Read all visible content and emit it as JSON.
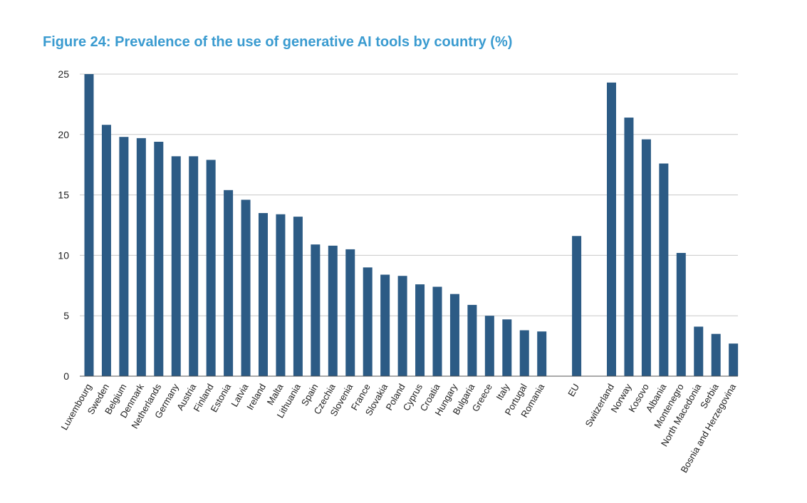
{
  "chart_data": {
    "type": "bar",
    "title": "Figure 24: Prevalence of the use of generative AI tools by country (%)",
    "xlabel": "",
    "ylabel": "",
    "ylim": [
      0,
      25
    ],
    "yticks": [
      0,
      5,
      10,
      15,
      20,
      25
    ],
    "grid": true,
    "legend": "none",
    "bar_color": "#2c5b85",
    "gridline_color": "#c8c8c8",
    "title_color": "#3a9bd0",
    "categories": [
      "Luxembourg",
      "Sweden",
      "Belgium",
      "Denmark",
      "Netherlands",
      "Germany",
      "Austria",
      "Finland",
      "Estonia",
      "Latvia",
      "Ireland",
      "Malta",
      "Lithuania",
      "Spain",
      "Czechia",
      "Slovenia",
      "France",
      "Slovakia",
      "Poland",
      "Cyprus",
      "Croatia",
      "Hungary",
      "Bulgaria",
      "Greece",
      "Italy",
      "Portugal",
      "Romania",
      "EU",
      "Switzerland",
      "Norway",
      "Kosovo",
      "Albania",
      "Montenegro",
      "North Macedonia",
      "Serbia",
      "Bosnia and Herzegovina"
    ],
    "values": [
      25.0,
      20.8,
      19.8,
      19.7,
      19.4,
      18.2,
      18.2,
      17.9,
      15.4,
      14.6,
      13.5,
      13.4,
      13.2,
      10.9,
      10.8,
      10.5,
      9.0,
      8.4,
      8.3,
      7.6,
      7.4,
      6.8,
      5.9,
      5.0,
      4.7,
      3.8,
      3.7,
      11.6,
      24.3,
      21.4,
      19.6,
      17.6,
      10.2,
      4.1,
      3.5,
      2.7
    ],
    "gaps_before": [
      "EU",
      "Switzerland"
    ]
  }
}
